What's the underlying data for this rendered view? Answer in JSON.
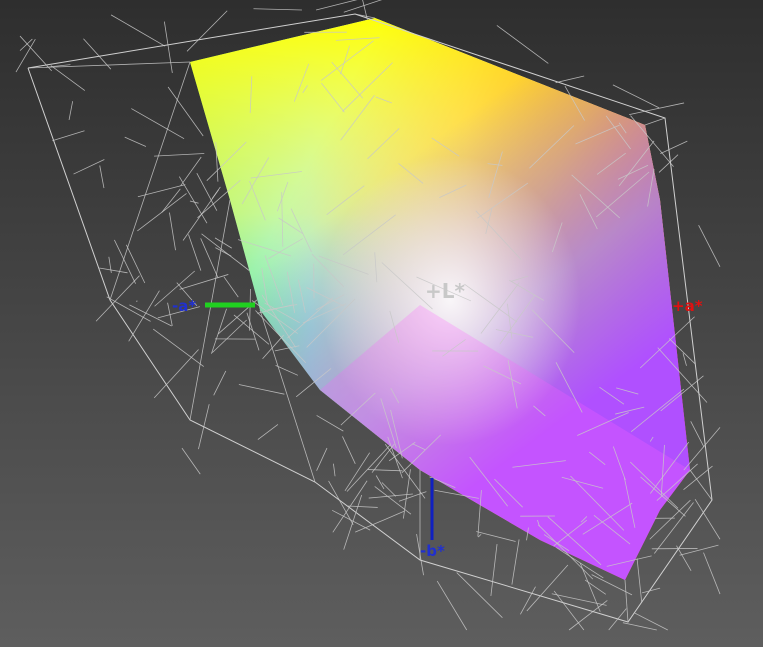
{
  "axes": {
    "l_plus": "+L*",
    "a_plus": "+a*",
    "a_minus": "-a*",
    "b_minus": "-b*"
  }
}
